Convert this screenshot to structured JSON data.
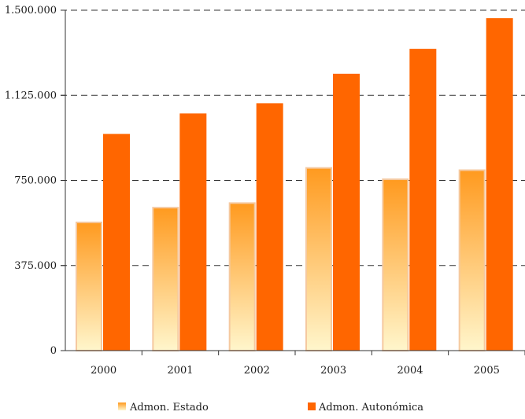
{
  "chart_data": {
    "type": "bar",
    "categories": [
      "2000",
      "2001",
      "2002",
      "2003",
      "2004",
      "2005"
    ],
    "series": [
      {
        "name": "Admon. Estado",
        "values": [
          565000,
          630000,
          650000,
          805000,
          755000,
          795000
        ]
      },
      {
        "name": "Admon. Autonómica",
        "values": [
          955000,
          1045000,
          1090000,
          1220000,
          1330000,
          1465000
        ]
      }
    ],
    "y_ticks": [
      "0",
      "375.000",
      "750.000",
      "1.125.000",
      "1.500.000"
    ],
    "ylim": [
      0,
      1500000
    ],
    "grid": "dashed horizontal",
    "legend_position": "bottom",
    "colors": {
      "estado_top": "#ff9a1f",
      "estado_bottom": "#fff6cc",
      "estado_border": "#f5c9a0",
      "autonomica": "#ff6600",
      "axis": "#333333",
      "grid": "#333333"
    }
  }
}
